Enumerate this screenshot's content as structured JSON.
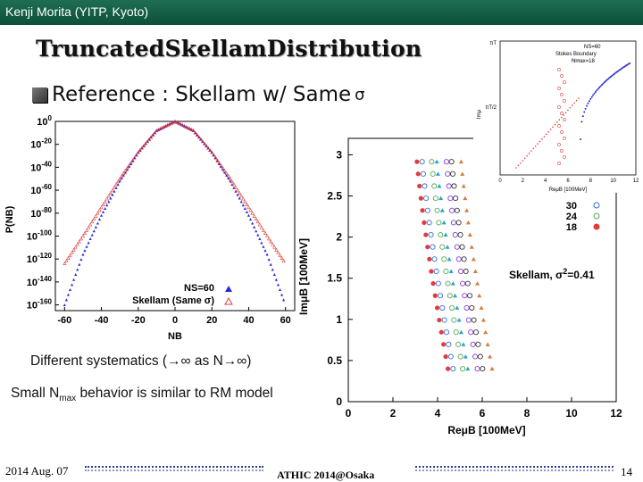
{
  "header": {
    "author": "Kenji Morita (YITP, Kyoto)"
  },
  "slide": {
    "title": "TruncatedSkellamDistribution",
    "reference": "Reference : Skellam w/ Same",
    "reference_symbol": "σ",
    "line_a": "Different systematics (→∞ as N→∞)",
    "line_b_pre": "Small N",
    "line_b_sub": "max",
    "line_b_post": " behavior is similar to RM model"
  },
  "footer": {
    "date": "2014 Aug. 07",
    "event": "ATHIC 2014@Osaka",
    "page": "14"
  },
  "colors": {
    "header_bg": "#13573f",
    "series_ns60": "#2a2ad4",
    "series_skellam": "#e03c3c"
  },
  "chart_data": [
    {
      "type": "line",
      "ylabel": "P(NB)",
      "xlabel": "NB",
      "x_ticks": [
        "-60",
        "-40",
        "-20",
        "0",
        "20",
        "40",
        "60"
      ],
      "y_ticks": [
        "10^0",
        "10^-20",
        "10^-40",
        "10^-60",
        "10^-80",
        "10^-100",
        "10^-120",
        "10^-140",
        "10^-160"
      ],
      "xlim": [
        -65,
        65
      ],
      "ylim_log10": [
        -165,
        0
      ],
      "series": [
        {
          "name": "NS=60",
          "marker": "triangle-filled",
          "x": [
            -60,
            -50,
            -40,
            -30,
            -20,
            -10,
            0,
            10,
            20,
            30,
            40,
            50,
            60
          ],
          "log10_y": [
            -160,
            -116,
            -82,
            -52,
            -27,
            -8,
            0,
            -8,
            -27,
            -52,
            -82,
            -116,
            -160
          ]
        },
        {
          "name": "Skellam (Same σ)",
          "marker": "triangle-open",
          "x": [
            -60,
            -50,
            -40,
            -30,
            -20,
            -10,
            0,
            10,
            20,
            30,
            40,
            50,
            60
          ],
          "log10_y": [
            -124,
            -100,
            -75,
            -50,
            -27,
            -8,
            0,
            -8,
            -27,
            -50,
            -75,
            -100,
            -124
          ]
        }
      ],
      "legend": [
        "NS=60",
        "Skellam (Same σ)"
      ]
    },
    {
      "type": "scatter",
      "xlabel": "ReμB [100MeV]",
      "ylabel": "ImμB [100MeV]",
      "x_ticks": [
        "0",
        "2",
        "4",
        "6",
        "8",
        "10",
        "12"
      ],
      "y_ticks": [
        "0",
        "0.5",
        "1",
        "1.5",
        "2",
        "2.5",
        "3"
      ],
      "xlim": [
        0,
        12
      ],
      "ylim": [
        0,
        3.2
      ],
      "legend_partial": [
        "30",
        "24",
        "18"
      ],
      "annotation_text": "Skellam, σ",
      "annotation_sup": "2",
      "annotation_value": "=0.41"
    },
    {
      "type": "scatter",
      "inset": true,
      "labels": {
        "ns": "NS=60",
        "stokes": "Stokes Boundary",
        "nmax": "Nmax=18"
      },
      "y_ticks": [
        "πT",
        "πT/2"
      ],
      "x_ticks": [
        "0",
        "2",
        "4",
        "6",
        "8",
        "10",
        "12"
      ],
      "xlabel": "ReμB [100MeV]",
      "ylabel": "Imμ"
    }
  ]
}
